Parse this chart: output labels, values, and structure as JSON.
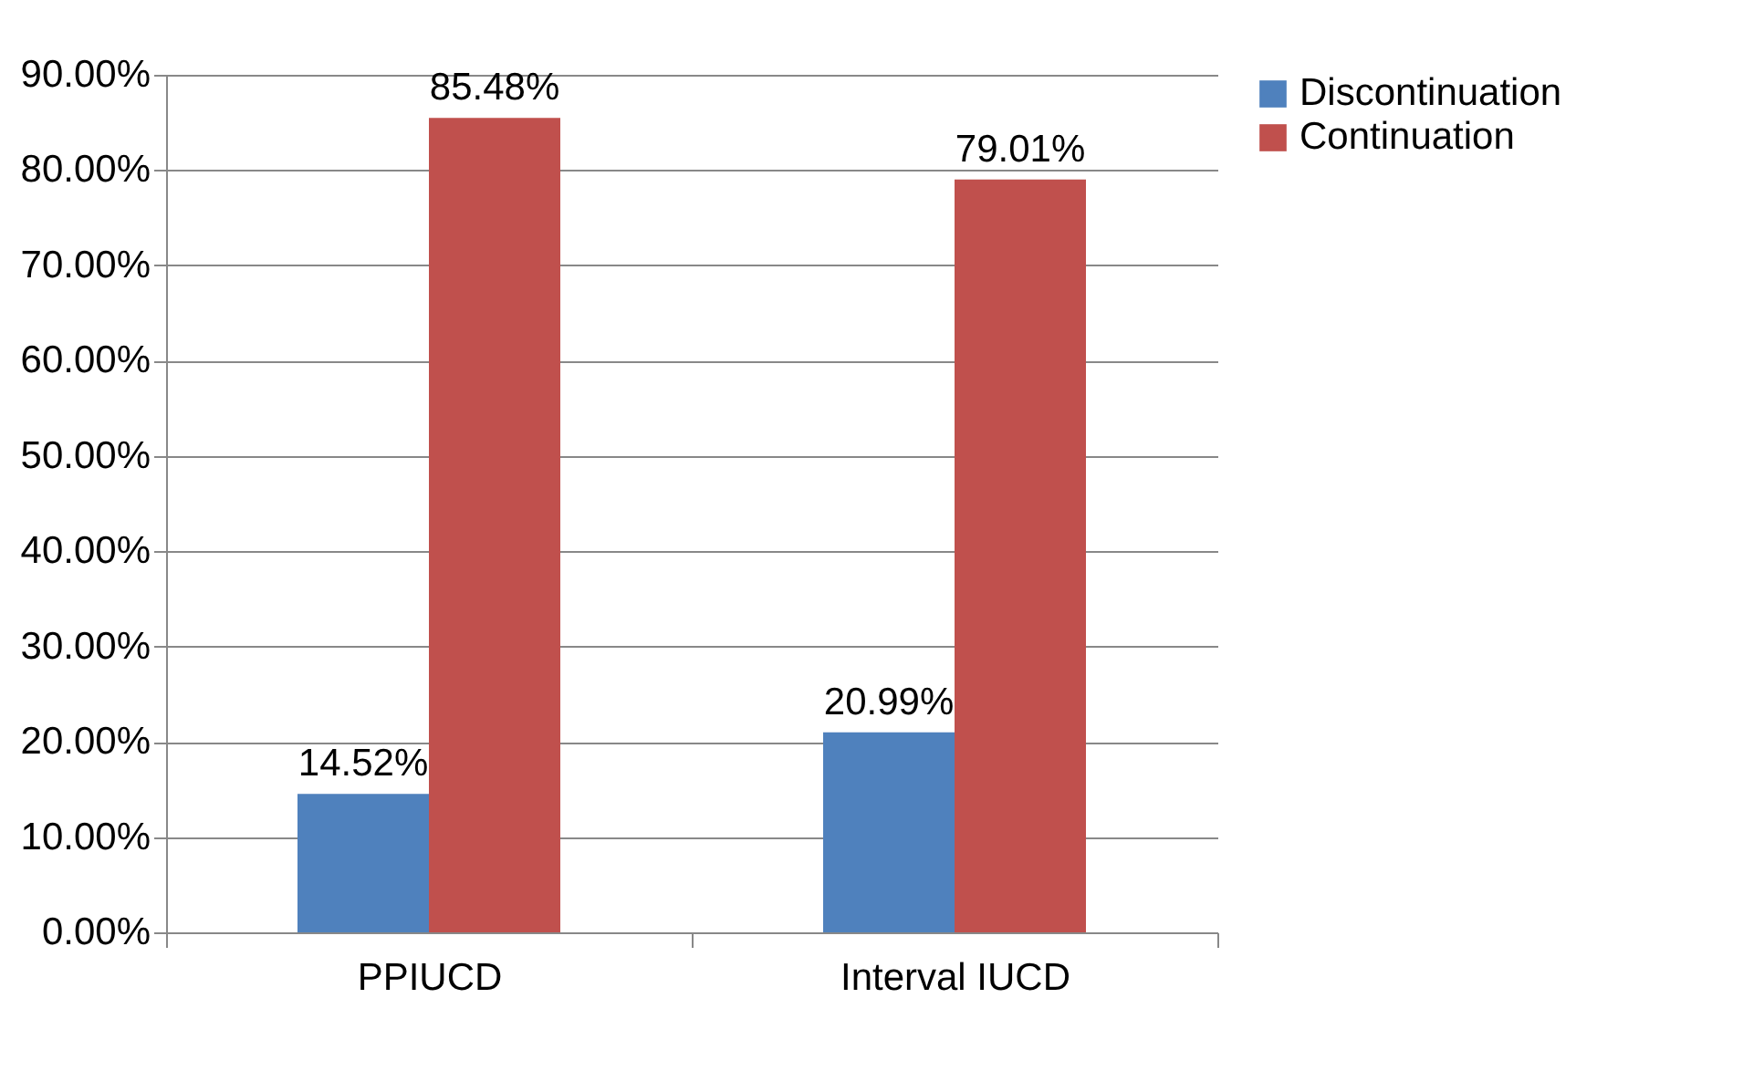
{
  "chart_data": {
    "type": "bar",
    "categories": [
      "PPIUCD",
      "Interval IUCD"
    ],
    "series": [
      {
        "name": "Discontinuation",
        "color": "#4f81bd",
        "values": [
          14.52,
          20.99
        ],
        "value_labels": [
          "14.52%",
          "20.99%"
        ]
      },
      {
        "name": "Continuation",
        "color": "#c0504d",
        "values": [
          85.48,
          79.01
        ],
        "value_labels": [
          "85.48%",
          "79.01%"
        ]
      }
    ],
    "ylim": [
      0,
      90
    ],
    "yticks": [
      {
        "value": 0,
        "label": "0.00%"
      },
      {
        "value": 10,
        "label": "10.00%"
      },
      {
        "value": 20,
        "label": "20.00%"
      },
      {
        "value": 30,
        "label": "30.00%"
      },
      {
        "value": 40,
        "label": "40.00%"
      },
      {
        "value": 50,
        "label": "50.00%"
      },
      {
        "value": 60,
        "label": "60.00%"
      },
      {
        "value": 70,
        "label": "70.00%"
      },
      {
        "value": 80,
        "label": "80.00%"
      },
      {
        "value": 90,
        "label": "90.00%"
      }
    ],
    "grid": "y",
    "legend": "right"
  }
}
